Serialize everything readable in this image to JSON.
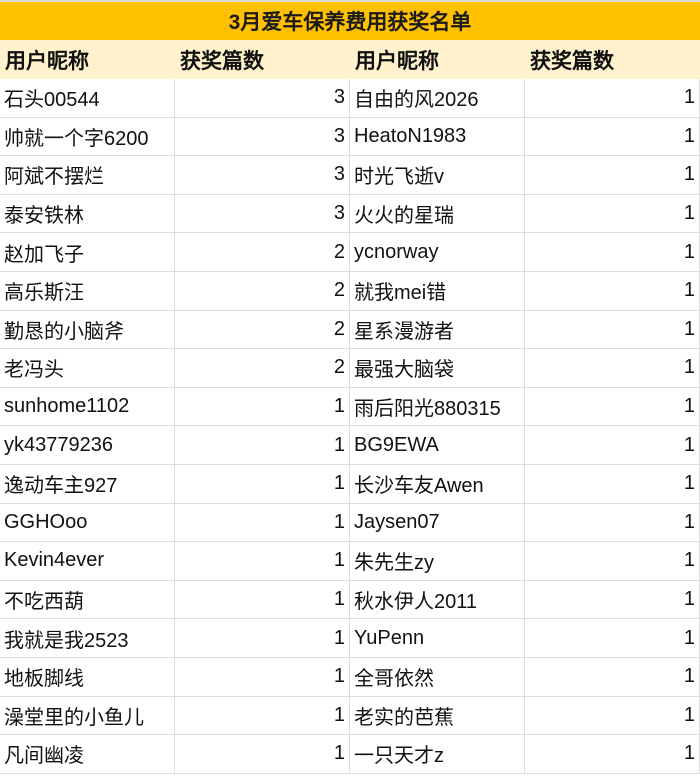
{
  "title": "3月爱车保养费用获奖名单",
  "headers": [
    "用户昵称",
    "获奖篇数",
    "用户昵称",
    "获奖篇数"
  ],
  "colors": {
    "title_bg": "#FFC000",
    "header_bg": "#FFF2CC"
  },
  "rows": [
    [
      "石头00544",
      "3",
      "自由的风2026",
      "1"
    ],
    [
      "帅就一个字6200",
      "3",
      "HeatoN1983",
      "1"
    ],
    [
      "阿斌不摆烂",
      "3",
      "时光飞逝v",
      "1"
    ],
    [
      "泰安铁林",
      "3",
      "火火的星瑞",
      "1"
    ],
    [
      "赵加飞子",
      "2",
      "ycnorway",
      "1"
    ],
    [
      "高乐斯汪",
      "2",
      "就我mei错",
      "1"
    ],
    [
      "勤恳的小脑斧",
      "2",
      "星系漫游者",
      "1"
    ],
    [
      "老冯头",
      "2",
      "最强大脑袋",
      "1"
    ],
    [
      "sunhome1102",
      "1",
      "雨后阳光880315",
      "1"
    ],
    [
      "yk43779236",
      "1",
      "BG9EWA",
      "1"
    ],
    [
      "逸动车主927",
      "1",
      "长沙车友Awen",
      "1"
    ],
    [
      "GGHOoo",
      "1",
      "Jaysen07",
      "1"
    ],
    [
      "Kevin4ever",
      "1",
      "朱先生zy",
      "1"
    ],
    [
      "不吃西葫",
      "1",
      "秋水伊人2011",
      "1"
    ],
    [
      "我就是我2523",
      "1",
      "YuPenn",
      "1"
    ],
    [
      "地板脚线",
      "1",
      "全哥依然",
      "1"
    ],
    [
      "澡堂里的小鱼儿",
      "1",
      "老实的芭蕉",
      "1"
    ],
    [
      "凡间幽凌",
      "1",
      "一只天才z",
      "1"
    ]
  ]
}
